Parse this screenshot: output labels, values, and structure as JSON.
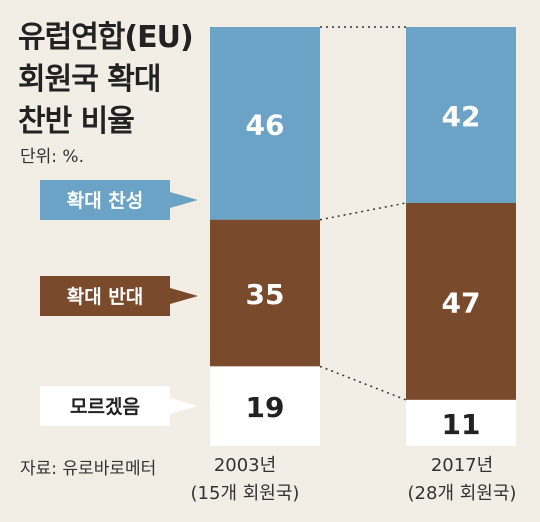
{
  "title_lines": [
    "유럽연합(EU)",
    "회원국 확대",
    "찬반 비율"
  ],
  "unit": "단위: %.",
  "source": "자료: 유로바로메터",
  "colors": {
    "support": "#6aa3c6",
    "oppose": "#7a4a2c",
    "unknown": "#ffffff",
    "background": "#f2eee6",
    "text_light": "#ffffff",
    "text_dark": "#222222"
  },
  "chart_data": {
    "type": "bar",
    "stacked": true,
    "categories": [
      {
        "year": "2003년",
        "members": "(15개 회원국)"
      },
      {
        "year": "2017년",
        "members": "(28개 회원국)"
      }
    ],
    "series": [
      {
        "name": "확대 찬성",
        "values": [
          46,
          42
        ]
      },
      {
        "name": "확대 반대",
        "values": [
          35,
          47
        ]
      },
      {
        "name": "모르겠음",
        "values": [
          19,
          11
        ]
      }
    ],
    "ylim": [
      0,
      100
    ],
    "legend_placement": "left"
  }
}
